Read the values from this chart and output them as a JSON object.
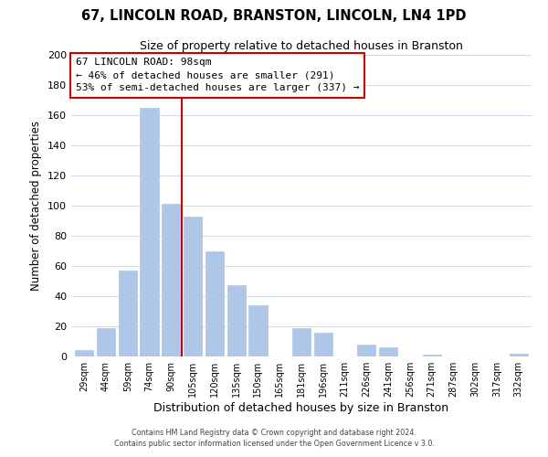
{
  "title_line1": "67, LINCOLN ROAD, BRANSTON, LINCOLN, LN4 1PD",
  "title_line2": "Size of property relative to detached houses in Branston",
  "xlabel": "Distribution of detached houses by size in Branston",
  "ylabel": "Number of detached properties",
  "bar_labels": [
    "29sqm",
    "44sqm",
    "59sqm",
    "74sqm",
    "90sqm",
    "105sqm",
    "120sqm",
    "135sqm",
    "150sqm",
    "165sqm",
    "181sqm",
    "196sqm",
    "211sqm",
    "226sqm",
    "241sqm",
    "256sqm",
    "271sqm",
    "287sqm",
    "302sqm",
    "317sqm",
    "332sqm"
  ],
  "bar_values": [
    4,
    19,
    57,
    165,
    101,
    93,
    70,
    47,
    34,
    0,
    19,
    16,
    0,
    8,
    6,
    0,
    1,
    0,
    0,
    0,
    2
  ],
  "bar_color": "#aec6e8",
  "bar_edge_color": "#aec6e8",
  "vline_x": 4.5,
  "vline_color": "#cc0000",
  "annotation_title": "67 LINCOLN ROAD: 98sqm",
  "annotation_line1": "← 46% of detached houses are smaller (291)",
  "annotation_line2": "53% of semi-detached houses are larger (337) →",
  "annotation_box_color": "#ffffff",
  "annotation_box_edge": "#cc0000",
  "ylim": [
    0,
    200
  ],
  "yticks": [
    0,
    20,
    40,
    60,
    80,
    100,
    120,
    140,
    160,
    180,
    200
  ],
  "footer_line1": "Contains HM Land Registry data © Crown copyright and database right 2024.",
  "footer_line2": "Contains public sector information licensed under the Open Government Licence v 3.0.",
  "background_color": "#ffffff",
  "grid_color": "#d0dce8"
}
